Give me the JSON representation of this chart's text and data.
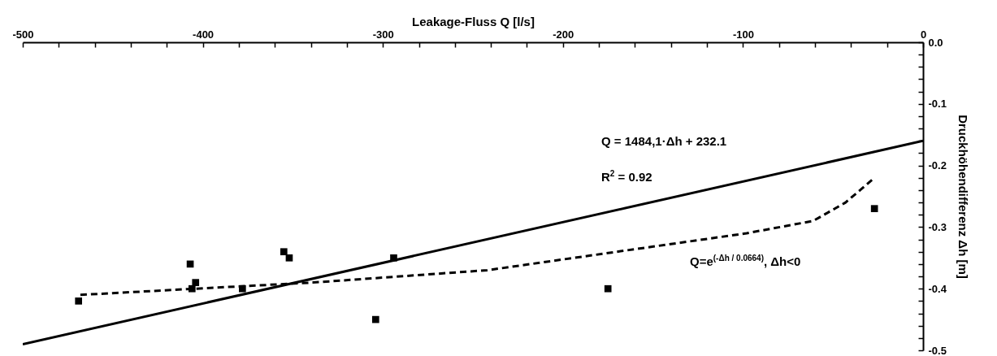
{
  "chart_data": {
    "type": "scatter",
    "xlabel": "Leakage-Fluss Q [l/s]",
    "ylabel": "Druckhöhendifferenz Δh [m]",
    "xlim": [
      -500,
      0
    ],
    "ylim": [
      -0.5,
      0
    ],
    "xticks": [
      -500,
      {
        "value": -480,
        "label": null
      },
      {
        "value": -460,
        "label": null
      },
      {
        "value": -440,
        "label": null
      },
      {
        "value": -420,
        "label": null
      },
      -400,
      {
        "value": -380,
        "label": null
      },
      {
        "value": -360,
        "label": null
      },
      {
        "value": -340,
        "label": null
      },
      {
        "value": -320,
        "label": null
      },
      -300,
      {
        "value": -280,
        "label": null
      },
      {
        "value": -260,
        "label": null
      },
      {
        "value": -240,
        "label": null
      },
      {
        "value": -220,
        "label": null
      },
      -200,
      {
        "value": -180,
        "label": null
      },
      {
        "value": -160,
        "label": null
      },
      {
        "value": -140,
        "label": null
      },
      {
        "value": -120,
        "label": null
      },
      -100,
      {
        "value": -80,
        "label": null
      },
      {
        "value": -60,
        "label": null
      },
      {
        "value": -40,
        "label": null
      },
      {
        "value": -20,
        "label": null
      },
      0
    ],
    "yticks": [
      {
        "value": 0,
        "label": "0.0"
      },
      {
        "value": -0.02,
        "label": null
      },
      {
        "value": -0.04,
        "label": null
      },
      {
        "value": -0.06,
        "label": null
      },
      {
        "value": -0.08,
        "label": null
      },
      {
        "value": -0.1,
        "label": "-0.1"
      },
      {
        "value": -0.12,
        "label": null
      },
      {
        "value": -0.14,
        "label": null
      },
      {
        "value": -0.16,
        "label": null
      },
      {
        "value": -0.18,
        "label": null
      },
      {
        "value": -0.2,
        "label": "-0.2"
      },
      {
        "value": -0.22,
        "label": null
      },
      {
        "value": -0.24,
        "label": null
      },
      {
        "value": -0.26,
        "label": null
      },
      {
        "value": -0.28,
        "label": null
      },
      {
        "value": -0.3,
        "label": "-0.3"
      },
      {
        "value": -0.32,
        "label": null
      },
      {
        "value": -0.34,
        "label": null
      },
      {
        "value": -0.36,
        "label": null
      },
      {
        "value": -0.38,
        "label": null
      },
      {
        "value": -0.4,
        "label": "-0.4"
      },
      {
        "value": -0.42,
        "label": null
      },
      {
        "value": -0.44,
        "label": null
      },
      {
        "value": -0.46,
        "label": null
      },
      {
        "value": -0.48,
        "label": null
      },
      {
        "value": -0.5,
        "label": "-0.5"
      }
    ],
    "series": [
      {
        "type": "scatter",
        "marker": "square",
        "color": "#000000",
        "x": [
          -469,
          -407,
          -404,
          -406,
          -378,
          -355,
          -352,
          -304,
          -294,
          -175,
          -27
        ],
        "values": [
          -0.42,
          -0.36,
          -0.39,
          -0.4,
          -0.4,
          -0.34,
          -0.35,
          -0.45,
          -0.35,
          -0.4,
          -0.27
        ]
      },
      {
        "type": "line",
        "line_style": "solid",
        "color": "#000000",
        "x": [
          -500,
          0
        ],
        "values": [
          -0.49,
          -0.16
        ]
      },
      {
        "type": "line",
        "line_style": "dashed",
        "color": "#000000",
        "x": [
          -468,
          -404,
          -339,
          -242,
          -170,
          -98,
          -61,
          -43,
          -27
        ],
        "values": [
          -0.41,
          -0.4,
          -0.39,
          -0.37,
          -0.34,
          -0.31,
          -0.29,
          -0.26,
          -0.22
        ]
      }
    ],
    "annotations": [
      "Q = 1484,1·Δh + 232.1",
      "R$^{2}$ = 0.92",
      "Q=e$^{(-Δh / 0.0664)}$, Δh<0"
    ]
  }
}
